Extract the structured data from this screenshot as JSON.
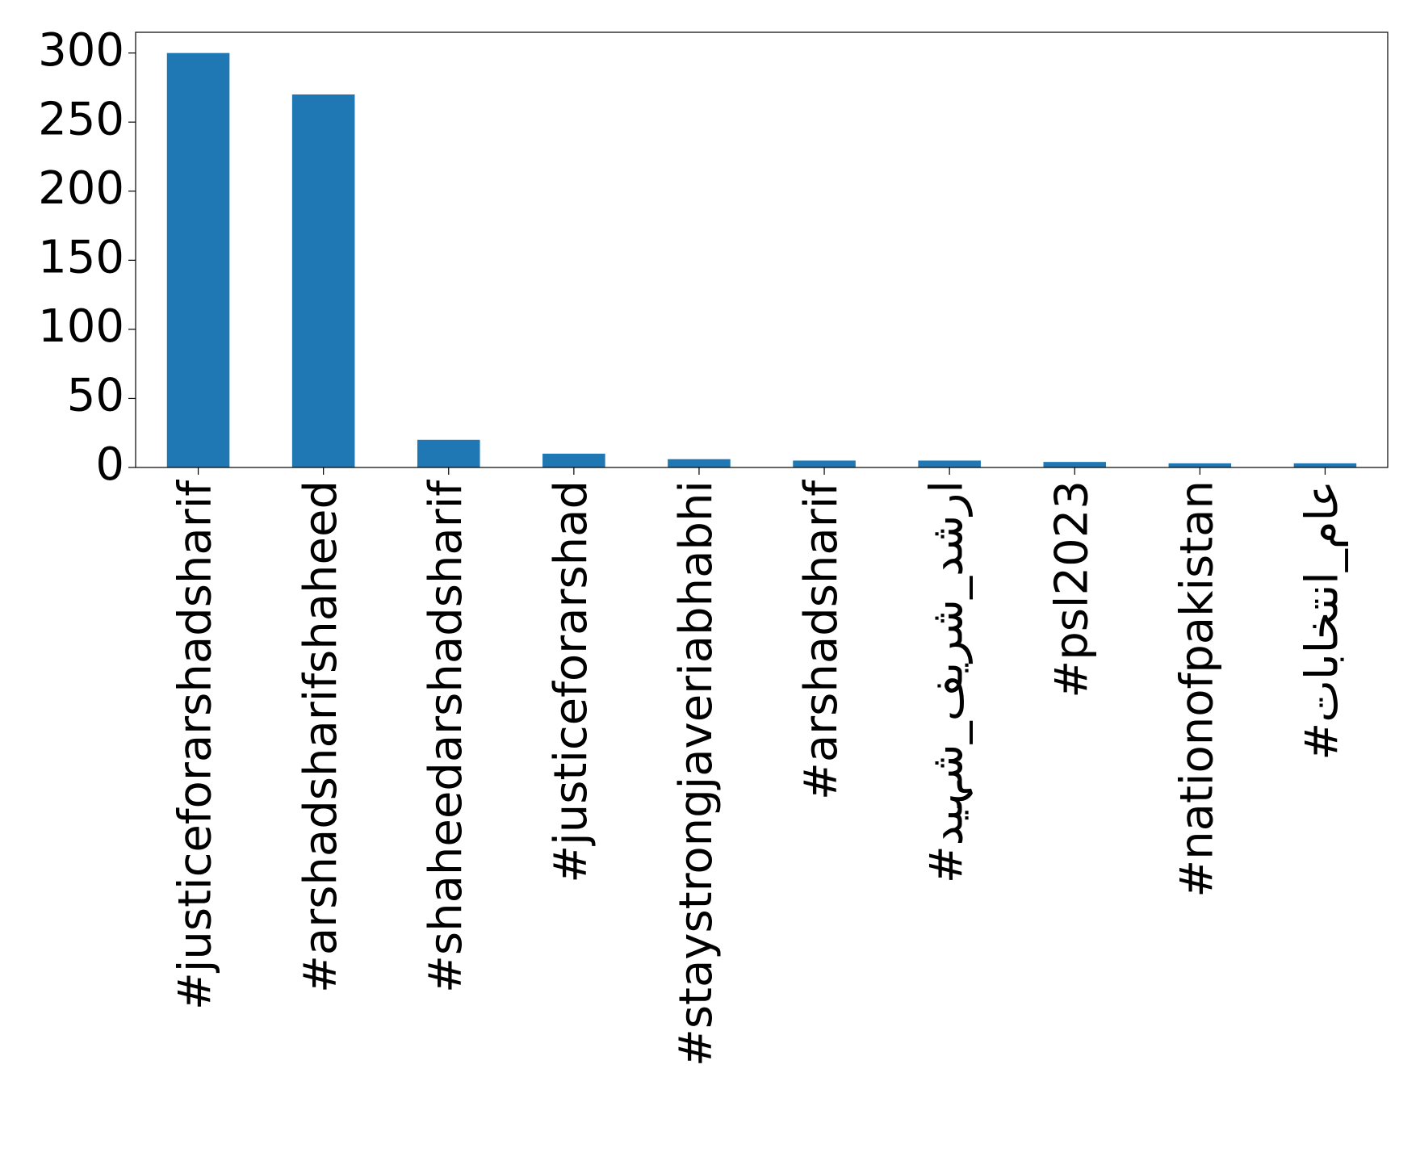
{
  "chart_data": {
    "type": "bar",
    "categories": [
      "#justiceforarshadsharif",
      "#arshadsharifshaheed",
      "#shaheedarshadsharif",
      "#justiceforarshad",
      "#staystrongjaveriabhabhi",
      "#arshadsharif",
      "#ارشد_شریف_شہید",
      "#psl2023",
      "#nationofpakistan",
      "#عام_انتخابات"
    ],
    "values": [
      300,
      270,
      20,
      10,
      6,
      5,
      5,
      4,
      3,
      3
    ],
    "color": "#1f77b4",
    "ylim": [
      0,
      315
    ],
    "yticks": [
      0,
      50,
      100,
      150,
      200,
      250,
      300
    ],
    "grid": false
  }
}
